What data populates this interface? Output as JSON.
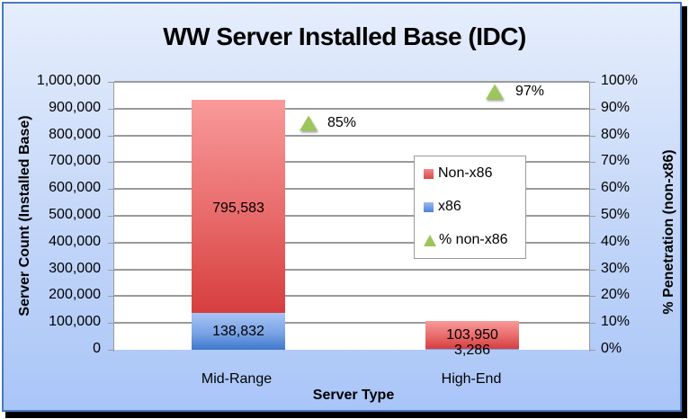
{
  "chart_data": {
    "type": "bar",
    "subtype": "stacked-bar-with-secondary-axis-markers",
    "title": "WW Server Installed Base (IDC)",
    "xlabel": "Server Type",
    "ylabel": "Server Count (Installed Base)",
    "y2label": "% Penetration (non-x86)",
    "categories": [
      "Mid-Range",
      "High-End"
    ],
    "series": [
      {
        "name": "x86",
        "axis": "primary",
        "type": "bar",
        "color": "#5b8fd9",
        "values": [
          138832,
          3286
        ],
        "labels": [
          "138,832",
          "3,286"
        ]
      },
      {
        "name": "Non-x86",
        "axis": "primary",
        "type": "bar",
        "color": "#e05252",
        "values": [
          795583,
          103950
        ],
        "labels": [
          "795,583",
          "103,950"
        ]
      },
      {
        "name": "% non-x86",
        "axis": "secondary",
        "type": "scatter",
        "marker": "triangle",
        "color": "#9cc55a",
        "values": [
          85,
          97
        ],
        "labels": [
          "85%",
          "97%"
        ]
      }
    ],
    "ylim": [
      0,
      1000000
    ],
    "y2lim": [
      0,
      100
    ],
    "yticks": [
      "0",
      "100,000",
      "200,000",
      "300,000",
      "400,000",
      "500,000",
      "600,000",
      "700,000",
      "800,000",
      "900,000",
      "1,000,000"
    ],
    "y2ticks": [
      "0%",
      "10%",
      "20%",
      "30%",
      "40%",
      "50%",
      "60%",
      "70%",
      "80%",
      "90%",
      "100%"
    ],
    "grid": true,
    "legend": {
      "position": "inside-right",
      "entries": [
        "Non-x86",
        "x86",
        "% non-x86"
      ]
    }
  }
}
